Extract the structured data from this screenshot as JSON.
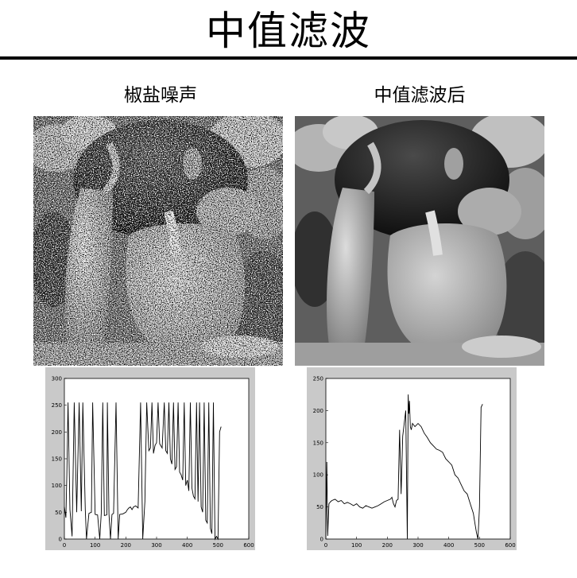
{
  "page_title": "中值滤波",
  "left_caption": "椒盐噪声",
  "right_caption": "中值滤波后",
  "chart_data": [
    {
      "type": "line",
      "title": "",
      "xlabel": "",
      "ylabel": "",
      "xlim": [
        0,
        600
      ],
      "ylim": [
        0,
        300
      ],
      "x_ticks": [
        "0",
        "100",
        "200",
        "300",
        "400",
        "500",
        "600"
      ],
      "y_ticks": [
        "0",
        "50",
        "100",
        "150",
        "200",
        "250",
        "300"
      ],
      "x": [
        0,
        5,
        8,
        12,
        18,
        25,
        32,
        40,
        48,
        55,
        60,
        68,
        72,
        80,
        88,
        92,
        100,
        108,
        115,
        120,
        125,
        130,
        138,
        140,
        145,
        150,
        155,
        160,
        168,
        175,
        180,
        190,
        200,
        205,
        210,
        215,
        220,
        225,
        232,
        240,
        248,
        255,
        262,
        268,
        275,
        280,
        285,
        290,
        295,
        300,
        305,
        310,
        318,
        325,
        330,
        335,
        340,
        345,
        350,
        355,
        360,
        365,
        370,
        375,
        380,
        385,
        390,
        395,
        400,
        405,
        410,
        415,
        420,
        425,
        430,
        435,
        440,
        445,
        450,
        455,
        460,
        465,
        470,
        475,
        480,
        485,
        490,
        495,
        500,
        505,
        510
      ],
      "values": [
        60,
        40,
        120,
        255,
        55,
        5,
        255,
        50,
        255,
        52,
        255,
        55,
        0,
        48,
        50,
        255,
        46,
        45,
        0,
        48,
        255,
        44,
        45,
        255,
        47,
        0,
        46,
        48,
        255,
        0,
        46,
        47,
        50,
        55,
        58,
        60,
        55,
        60,
        62,
        58,
        255,
        0,
        70,
        255,
        165,
        170,
        255,
        160,
        175,
        180,
        255,
        178,
        170,
        255,
        165,
        160,
        255,
        150,
        140,
        255,
        130,
        135,
        255,
        125,
        120,
        110,
        255,
        100,
        110,
        90,
        255,
        95,
        80,
        75,
        255,
        70,
        255,
        60,
        50,
        255,
        35,
        30,
        255,
        20,
        10,
        255,
        0,
        5,
        0,
        200,
        210
      ]
    },
    {
      "type": "line",
      "title": "",
      "xlabel": "",
      "ylabel": "",
      "xlim": [
        0,
        600
      ],
      "ylim": [
        0,
        250
      ],
      "x_ticks": [
        "0",
        "100",
        "200",
        "300",
        "400",
        "500",
        "600"
      ],
      "y_ticks": [
        "0",
        "50",
        "100",
        "150",
        "200",
        "250"
      ],
      "x": [
        0,
        3,
        6,
        10,
        15,
        20,
        30,
        40,
        50,
        60,
        70,
        80,
        90,
        100,
        110,
        120,
        130,
        140,
        150,
        160,
        170,
        180,
        190,
        200,
        210,
        215,
        220,
        225,
        230,
        235,
        240,
        245,
        250,
        255,
        260,
        265,
        268,
        270,
        272,
        275,
        278,
        282,
        290,
        300,
        310,
        320,
        330,
        340,
        350,
        360,
        370,
        380,
        390,
        400,
        410,
        420,
        430,
        440,
        450,
        460,
        470,
        480,
        485,
        490,
        495,
        500,
        505,
        510
      ],
      "values": [
        0,
        120,
        5,
        55,
        58,
        60,
        62,
        58,
        60,
        55,
        57,
        55,
        52,
        55,
        50,
        48,
        52,
        50,
        48,
        50,
        52,
        55,
        58,
        60,
        62,
        65,
        55,
        50,
        60,
        62,
        170,
        70,
        160,
        180,
        200,
        0,
        225,
        195,
        215,
        175,
        170,
        180,
        175,
        180,
        175,
        165,
        158,
        150,
        145,
        140,
        138,
        135,
        125,
        120,
        115,
        100,
        95,
        85,
        75,
        70,
        55,
        40,
        25,
        10,
        0,
        50,
        205,
        210
      ]
    }
  ]
}
